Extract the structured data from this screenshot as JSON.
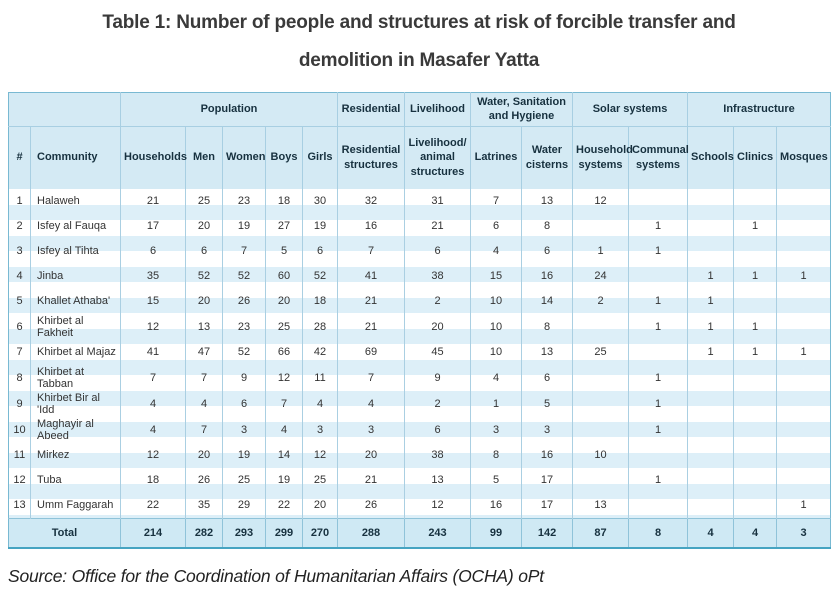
{
  "title": {
    "line1": "Table 1: Number of people and structures at risk of forcible transfer and",
    "line2": "demolition in Masafer Yatta"
  },
  "source": "Source: Office for the Coordination of Humanitarian Affairs (OCHA) oPt",
  "colors": {
    "header_bg": "#d4eaf4",
    "stripe_blue": "#ddeff8",
    "total_bg": "#cfe9f4",
    "border_light": "#aacfe2",
    "border_dark": "#46a4c1",
    "header_text": "#17313f",
    "body_text": "#333333"
  },
  "table": {
    "group_headers": [
      {
        "label": "",
        "span": 2
      },
      {
        "label": "Population",
        "span": 5
      },
      {
        "label": "Residential",
        "span": 1
      },
      {
        "label": "Livelihood",
        "span": 1
      },
      {
        "label": "Water, Sanitation and Hygiene",
        "span": 2
      },
      {
        "label": "Solar systems",
        "span": 2
      },
      {
        "label": "Infrastructure",
        "span": 3
      }
    ],
    "columns": [
      "#",
      "Community",
      "Households",
      "Men",
      "Women",
      "Boys",
      "Girls",
      "Residential structures",
      "Livelihood/ animal structures",
      "Latrines",
      "Water cisterns",
      "Household systems",
      "Communal systems",
      "Schools",
      "Clinics",
      "Mosques"
    ],
    "rows": [
      {
        "cells": [
          "1",
          "Halaweh",
          "21",
          "25",
          "23",
          "18",
          "30",
          "32",
          "31",
          "7",
          "13",
          "12",
          "",
          "",
          "",
          ""
        ]
      },
      {
        "cells": [
          "2",
          "Isfey al Fauqa",
          "17",
          "20",
          "19",
          "27",
          "19",
          "16",
          "21",
          "6",
          "8",
          "",
          "1",
          "",
          "1",
          ""
        ]
      },
      {
        "cells": [
          "3",
          "Isfey al Tihta",
          "6",
          "6",
          "7",
          "5",
          "6",
          "7",
          "6",
          "4",
          "6",
          "1",
          "1",
          "",
          "",
          ""
        ]
      },
      {
        "cells": [
          "4",
          "Jinba",
          "35",
          "52",
          "52",
          "60",
          "52",
          "41",
          "38",
          "15",
          "16",
          "24",
          "",
          "1",
          "1",
          "1"
        ]
      },
      {
        "cells": [
          "5",
          "Khallet Athaba'",
          "15",
          "20",
          "26",
          "20",
          "18",
          "21",
          "2",
          "10",
          "14",
          "2",
          "1",
          "1",
          "",
          ""
        ]
      },
      {
        "cells": [
          "6",
          "Khirbet al Fakheit",
          "12",
          "13",
          "23",
          "25",
          "28",
          "21",
          "20",
          "10",
          "8",
          "",
          "1",
          "1",
          "1",
          ""
        ]
      },
      {
        "cells": [
          "7",
          "Khirbet al Majaz",
          "41",
          "47",
          "52",
          "66",
          "42",
          "69",
          "45",
          "10",
          "13",
          "25",
          "",
          "1",
          "1",
          "1"
        ]
      },
      {
        "cells": [
          "8",
          "Khirbet at Tabban",
          "7",
          "7",
          "9",
          "12",
          "11",
          "7",
          "9",
          "4",
          "6",
          "",
          "1",
          "",
          "",
          ""
        ]
      },
      {
        "cells": [
          "9",
          "Khirbet Bir al 'Idd",
          "4",
          "4",
          "6",
          "7",
          "4",
          "4",
          "2",
          "1",
          "5",
          "",
          "1",
          "",
          "",
          ""
        ]
      },
      {
        "cells": [
          "10",
          "Maghayir al Abeed",
          "4",
          "7",
          "3",
          "4",
          "3",
          "3",
          "6",
          "3",
          "3",
          "",
          "1",
          "",
          "",
          ""
        ]
      },
      {
        "cells": [
          "11",
          "Mirkez",
          "12",
          "20",
          "19",
          "14",
          "12",
          "20",
          "38",
          "8",
          "16",
          "10",
          "",
          "",
          "",
          ""
        ]
      },
      {
        "cells": [
          "12",
          "Tuba",
          "18",
          "26",
          "25",
          "19",
          "25",
          "21",
          "13",
          "5",
          "17",
          "",
          "1",
          "",
          "",
          ""
        ]
      },
      {
        "cells": [
          "13",
          "Umm Faggarah",
          "22",
          "35",
          "29",
          "22",
          "20",
          "26",
          "12",
          "16",
          "17",
          "13",
          "",
          "",
          "",
          "1"
        ]
      }
    ],
    "total": {
      "label": "Total",
      "values": [
        "214",
        "282",
        "293",
        "299",
        "270",
        "288",
        "243",
        "99",
        "142",
        "87",
        "8",
        "4",
        "4",
        "3"
      ]
    }
  }
}
